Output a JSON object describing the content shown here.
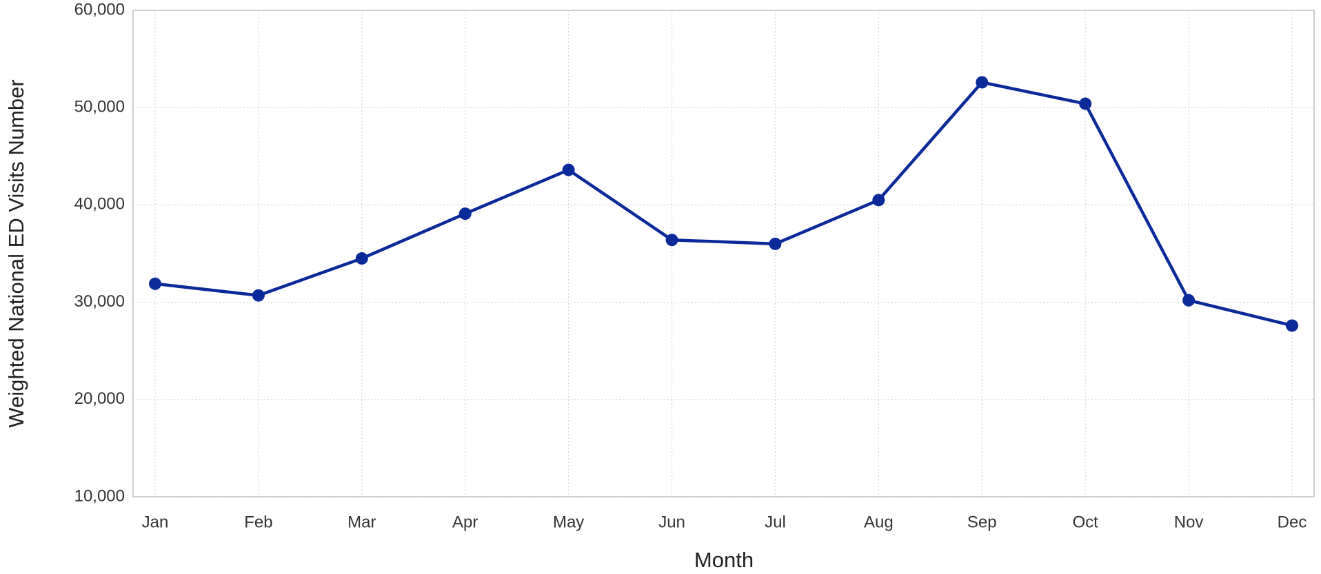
{
  "chart_data": {
    "type": "line",
    "x_label": "Month",
    "y_label": "Weighted National ED Visits Number",
    "categories": [
      "Jan",
      "Feb",
      "Mar",
      "Apr",
      "May",
      "Jun",
      "Jul",
      "Aug",
      "Sep",
      "Oct",
      "Nov",
      "Dec"
    ],
    "values": [
      31900,
      30700,
      34500,
      39100,
      43600,
      36400,
      36000,
      40500,
      52600,
      50400,
      30200,
      27600
    ],
    "color": "#0b2a9a",
    "ylim": [
      10000,
      60000
    ],
    "yticks": [
      {
        "value": 10000,
        "label": "10,000"
      },
      {
        "value": 20000,
        "label": "20,000"
      },
      {
        "value": 30000,
        "label": "30,000"
      },
      {
        "value": 40000,
        "label": "40,000"
      },
      {
        "value": 50000,
        "label": "50,000"
      },
      {
        "value": 60000,
        "label": "60,000"
      }
    ],
    "grid": true
  }
}
